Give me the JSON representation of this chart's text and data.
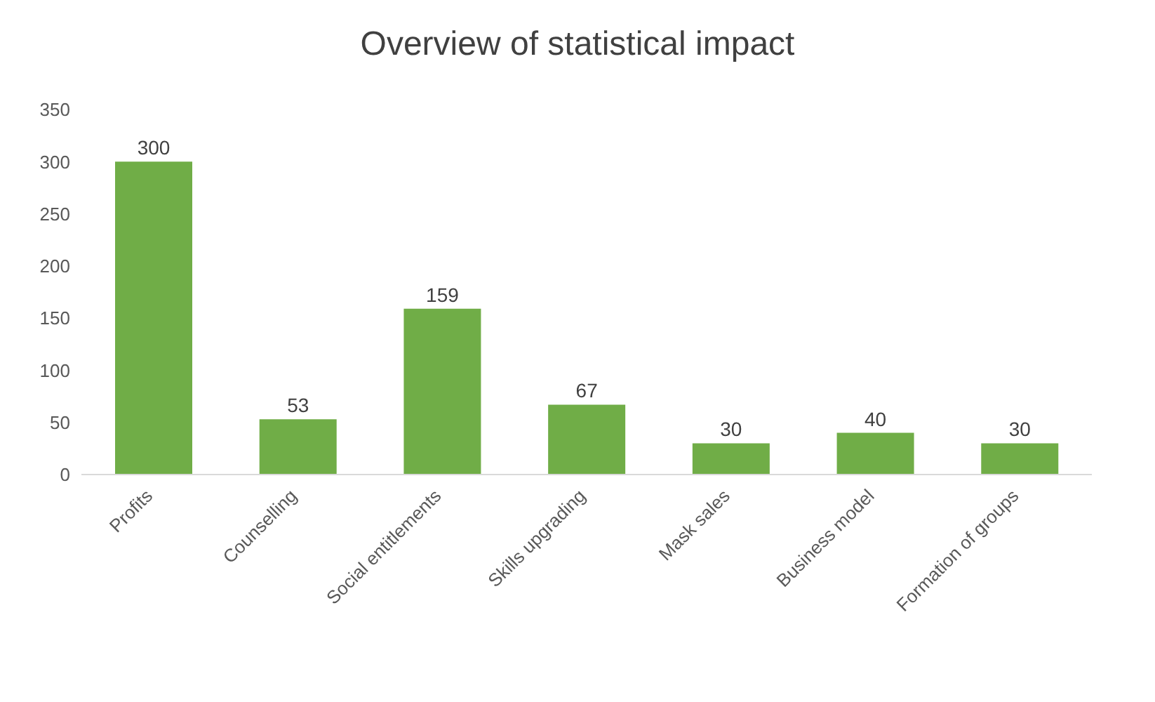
{
  "chart_data": {
    "type": "bar",
    "title": "Overview of statistical impact",
    "categories": [
      "Profits",
      "Counselling",
      "Social entitlements",
      "Skills upgrading",
      "Mask sales",
      "Business model",
      "Formation of groups"
    ],
    "values": [
      300,
      53,
      159,
      67,
      30,
      40,
      30
    ],
    "color": "#70ad47",
    "ylim": [
      0,
      350
    ],
    "yticks": [
      0,
      50,
      100,
      150,
      200,
      250,
      300,
      350
    ],
    "data_labels": true,
    "grid": false
  }
}
